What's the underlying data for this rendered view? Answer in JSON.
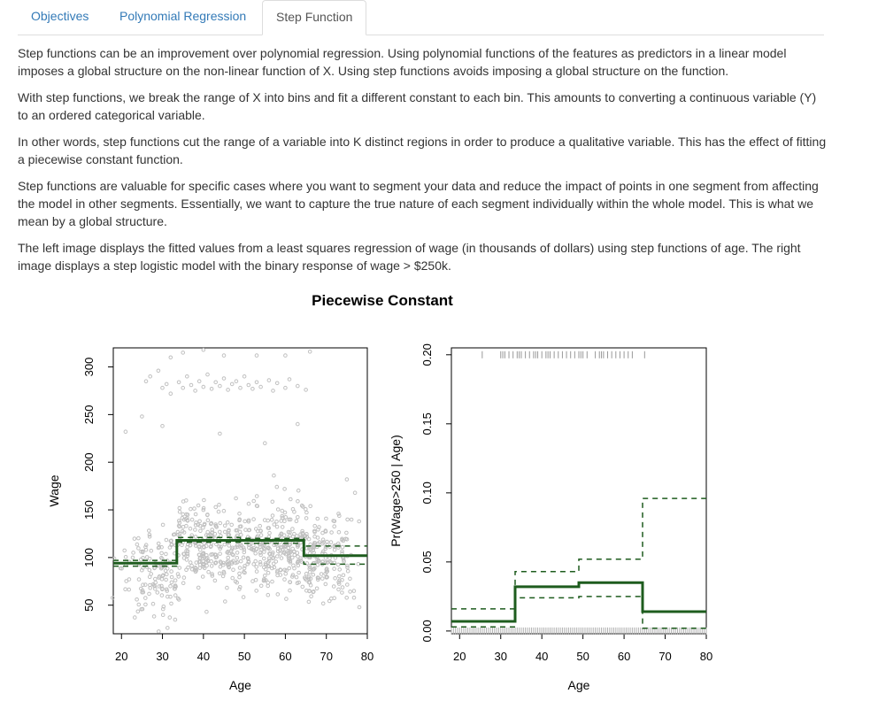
{
  "tabs": [
    {
      "label": "Objectives",
      "active": false
    },
    {
      "label": "Polynomial Regression",
      "active": false
    },
    {
      "label": "Step Function",
      "active": true
    }
  ],
  "paragraphs": [
    "Step functions can be an improvement over polynomial regression. Using polynomial functions of the features as predictors in a linear model imposes a global structure on the non-linear function of X. Using step functions avoids imposing a global structure on the function.",
    "With step functions, we break the range of X into bins and fit a different constant to each bin. This amounts to converting a continuous variable (Y) to an ordered categorical variable.",
    "In other words, step functions cut the range of a variable into K distinct regions in order to produce a qualitative variable. This has the effect of fitting a piecewise constant function.",
    "Step functions are valuable for specific cases where you want to segment your data and reduce the impact of points in one segment from affecting the model in other segments. Essentially, we want to capture the true nature of each segment individually within the whole model. This is what we mean by a global structure.",
    "The left image displays the fitted values from a least squares regression of wage (in thousands of dollars) using step functions of age. The right image displays a step logistic model with the binary response of wage > $250k."
  ],
  "colors": {
    "fit": "#1e5c1e",
    "points": "#c0c0c0",
    "link": "#337ab7"
  },
  "chart_data": [
    {
      "type": "scatter",
      "title": "Piecewise Constant",
      "xlabel": "Age",
      "ylabel": "Wage",
      "xlim": [
        18,
        80
      ],
      "ylim": [
        20,
        320
      ],
      "xticks": [
        20,
        30,
        40,
        50,
        60,
        70,
        80
      ],
      "yticks": [
        50,
        100,
        150,
        200,
        250,
        300
      ],
      "series": [
        {
          "role": "fit",
          "style": "solid",
          "x": [
            18,
            33.5,
            33.5,
            49,
            49,
            64.5,
            64.5,
            80
          ],
          "y": [
            94,
            94,
            118,
            118,
            118,
            118,
            102,
            102
          ]
        },
        {
          "role": "upper band",
          "style": "dashed",
          "x": [
            18,
            33.5,
            33.5,
            49,
            49,
            64.5,
            64.5,
            80
          ],
          "y": [
            97,
            97,
            121,
            121,
            120,
            120,
            112,
            112
          ]
        },
        {
          "role": "lower band",
          "style": "dashed",
          "x": [
            18,
            33.5,
            33.5,
            49,
            49,
            64.5,
            64.5,
            80
          ],
          "y": [
            91,
            91,
            116,
            116,
            115,
            115,
            93,
            93
          ]
        }
      ],
      "scatter_points": [
        [
          26,
          285
        ],
        [
          27,
          290
        ],
        [
          29,
          296
        ],
        [
          30,
          278
        ],
        [
          31,
          282
        ],
        [
          32,
          272
        ],
        [
          34,
          284
        ],
        [
          35,
          278
        ],
        [
          36,
          290
        ],
        [
          37,
          281
        ],
        [
          38,
          275
        ],
        [
          39,
          285
        ],
        [
          40,
          279
        ],
        [
          41,
          292
        ],
        [
          42,
          277
        ],
        [
          43,
          284
        ],
        [
          44,
          280
        ],
        [
          45,
          288
        ],
        [
          46,
          276
        ],
        [
          47,
          282
        ],
        [
          48,
          285
        ],
        [
          49,
          278
        ],
        [
          50,
          290
        ],
        [
          51,
          281
        ],
        [
          52,
          277
        ],
        [
          53,
          284
        ],
        [
          54,
          279
        ],
        [
          56,
          286
        ],
        [
          57,
          275
        ],
        [
          58,
          283
        ],
        [
          60,
          278
        ],
        [
          61,
          287
        ],
        [
          63,
          280
        ],
        [
          65,
          276
        ],
        [
          32,
          310
        ],
        [
          35,
          315
        ],
        [
          40,
          318
        ],
        [
          45,
          312
        ],
        [
          53,
          312
        ],
        [
          60,
          312
        ],
        [
          66,
          316
        ],
        [
          21,
          232
        ],
        [
          25,
          248
        ],
        [
          30,
          238
        ],
        [
          44,
          230
        ],
        [
          55,
          220
        ],
        [
          63,
          240
        ],
        [
          75,
          182
        ],
        [
          77,
          168
        ],
        [
          78,
          138
        ]
      ]
    },
    {
      "type": "line",
      "xlabel": "Age",
      "ylabel": "Pr(Wage>250 | Age)",
      "xlim": [
        18,
        80
      ],
      "ylim": [
        -0.002,
        0.205
      ],
      "xticks": [
        20,
        30,
        40,
        50,
        60,
        70,
        80
      ],
      "yticks": [
        0.0,
        0.05,
        0.1,
        0.15,
        0.2
      ],
      "ytick_labels": [
        "0.00",
        "0.05",
        "0.10",
        "0.15",
        "0.20"
      ],
      "series": [
        {
          "role": "fit",
          "style": "solid",
          "x": [
            18,
            33.5,
            33.5,
            49,
            49,
            64.5,
            64.5,
            80
          ],
          "y": [
            0.007,
            0.007,
            0.032,
            0.032,
            0.035,
            0.035,
            0.014,
            0.014
          ]
        },
        {
          "role": "upper band",
          "style": "dashed",
          "x": [
            18,
            33.5,
            33.5,
            49,
            49,
            64.5,
            64.5,
            80
          ],
          "y": [
            0.016,
            0.016,
            0.043,
            0.043,
            0.052,
            0.052,
            0.096,
            0.096
          ]
        },
        {
          "role": "lower band",
          "style": "dashed",
          "x": [
            18,
            33.5,
            33.5,
            49,
            49,
            64.5,
            64.5,
            80
          ],
          "y": [
            0.003,
            0.003,
            0.024,
            0.024,
            0.025,
            0.025,
            0.002,
            0.002
          ]
        }
      ],
      "rug_top": [
        25.5,
        30,
        30.5,
        31,
        32,
        33,
        34,
        34.5,
        35,
        36,
        37,
        38,
        38.5,
        39,
        40,
        41,
        41.5,
        42,
        43,
        44,
        45,
        46,
        47,
        48,
        49,
        49.5,
        50,
        51,
        53,
        54,
        54.5,
        55,
        56,
        57,
        58,
        59,
        60,
        61,
        62,
        65
      ],
      "rug_bottom_range": [
        18,
        80
      ]
    }
  ]
}
